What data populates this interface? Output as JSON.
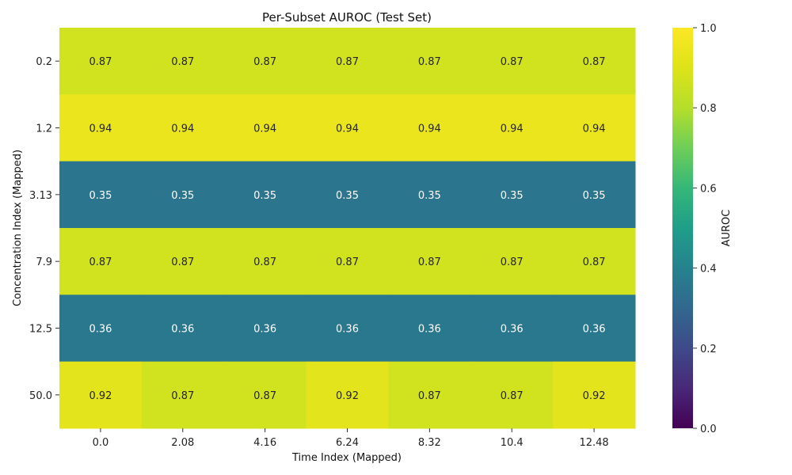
{
  "chart_data": {
    "type": "heatmap",
    "title": "Per-Subset AUROC (Test Set)",
    "xlabel": "Time Index (Mapped)",
    "ylabel": "Concentration Index (Mapped)",
    "x_categories": [
      "0.0",
      "2.08",
      "4.16",
      "6.24",
      "8.32",
      "10.4",
      "12.48"
    ],
    "y_categories": [
      "0.2",
      "1.2",
      "3.13",
      "7.9",
      "12.5",
      "50.0"
    ],
    "values": [
      [
        0.87,
        0.87,
        0.87,
        0.87,
        0.87,
        0.87,
        0.87
      ],
      [
        0.94,
        0.94,
        0.94,
        0.94,
        0.94,
        0.94,
        0.94
      ],
      [
        0.35,
        0.35,
        0.35,
        0.35,
        0.35,
        0.35,
        0.35
      ],
      [
        0.87,
        0.87,
        0.87,
        0.87,
        0.87,
        0.87,
        0.87
      ],
      [
        0.36,
        0.36,
        0.36,
        0.36,
        0.36,
        0.36,
        0.36
      ],
      [
        0.92,
        0.87,
        0.87,
        0.92,
        0.87,
        0.87,
        0.92
      ]
    ],
    "colormap": "viridis",
    "vmin": 0.0,
    "vmax": 1.0,
    "colorbar": {
      "label": "AUROC",
      "ticks": [
        "0.0",
        "0.2",
        "0.4",
        "0.6",
        "0.8",
        "1.0"
      ]
    },
    "annotated": true,
    "grid": false
  }
}
